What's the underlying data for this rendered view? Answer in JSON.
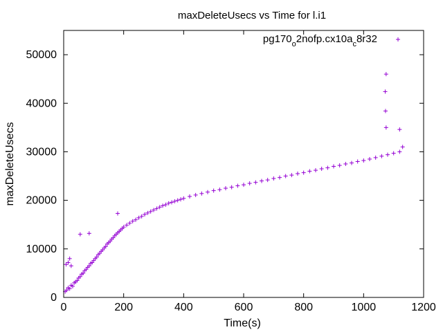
{
  "chart_data": {
    "type": "scatter",
    "title": "maxDeleteUsecs vs Time for l.i1",
    "xlabel": "Time(s)",
    "ylabel": "maxDeleteUsecs",
    "xlim": [
      0,
      1200
    ],
    "ylim": [
      0,
      55000
    ],
    "x_ticks": [
      0,
      200,
      400,
      600,
      800,
      1000,
      1200
    ],
    "y_ticks": [
      0,
      10000,
      20000,
      30000,
      40000,
      50000
    ],
    "grid": false,
    "legend_position": "top-right",
    "series": [
      {
        "name_parts": [
          {
            "text": "pg170",
            "sub": false
          },
          {
            "text": "o",
            "sub": true
          },
          {
            "text": "2nofp.cx10a",
            "sub": false
          },
          {
            "text": "c",
            "sub": true
          },
          {
            "text": "8r32",
            "sub": false
          }
        ],
        "color": "#9400d3",
        "marker": "+",
        "x_range": [
          2,
          1135
        ],
        "description_of_shape": "rising band",
        "points": [
          [
            5,
            1200
          ],
          [
            10,
            1500
          ],
          [
            15,
            2000
          ],
          [
            20,
            1800
          ],
          [
            25,
            2500
          ],
          [
            30,
            2300
          ],
          [
            35,
            3000
          ],
          [
            40,
            3200
          ],
          [
            45,
            3500
          ],
          [
            50,
            4000
          ],
          [
            55,
            4300
          ],
          [
            60,
            4800
          ],
          [
            65,
            5000
          ],
          [
            70,
            5500
          ],
          [
            75,
            5800
          ],
          [
            80,
            6200
          ],
          [
            85,
            6500
          ],
          [
            90,
            7000
          ],
          [
            95,
            7200
          ],
          [
            100,
            7600
          ],
          [
            105,
            8000
          ],
          [
            110,
            8300
          ],
          [
            115,
            8800
          ],
          [
            120,
            9100
          ],
          [
            125,
            9500
          ],
          [
            130,
            9800
          ],
          [
            135,
            10200
          ],
          [
            140,
            10500
          ],
          [
            145,
            11000
          ],
          [
            150,
            11300
          ],
          [
            155,
            11600
          ],
          [
            160,
            12000
          ],
          [
            165,
            12300
          ],
          [
            170,
            12700
          ],
          [
            175,
            13000
          ],
          [
            180,
            13300
          ],
          [
            185,
            13600
          ],
          [
            190,
            13900
          ],
          [
            195,
            14200
          ],
          [
            200,
            14500
          ],
          [
            210,
            14900
          ],
          [
            220,
            15300
          ],
          [
            230,
            15700
          ],
          [
            240,
            16000
          ],
          [
            250,
            16400
          ],
          [
            260,
            16700
          ],
          [
            270,
            17100
          ],
          [
            280,
            17400
          ],
          [
            290,
            17700
          ],
          [
            300,
            18000
          ],
          [
            310,
            18300
          ],
          [
            320,
            18600
          ],
          [
            330,
            18900
          ],
          [
            340,
            19100
          ],
          [
            350,
            19400
          ],
          [
            360,
            19600
          ],
          [
            370,
            19800
          ],
          [
            380,
            20000
          ],
          [
            390,
            20200
          ],
          [
            400,
            20400
          ],
          [
            420,
            20800
          ],
          [
            440,
            21100
          ],
          [
            460,
            21400
          ],
          [
            480,
            21700
          ],
          [
            500,
            22000
          ],
          [
            520,
            22200
          ],
          [
            540,
            22500
          ],
          [
            560,
            22700
          ],
          [
            580,
            23000
          ],
          [
            600,
            23200
          ],
          [
            620,
            23500
          ],
          [
            640,
            23700
          ],
          [
            660,
            24000
          ],
          [
            680,
            24200
          ],
          [
            700,
            24500
          ],
          [
            720,
            24700
          ],
          [
            740,
            25000
          ],
          [
            760,
            25200
          ],
          [
            780,
            25500
          ],
          [
            800,
            25700
          ],
          [
            820,
            26000
          ],
          [
            840,
            26200
          ],
          [
            860,
            26500
          ],
          [
            880,
            26700
          ],
          [
            900,
            27000
          ],
          [
            920,
            27200
          ],
          [
            940,
            27500
          ],
          [
            960,
            27700
          ],
          [
            980,
            28000
          ],
          [
            1000,
            28200
          ],
          [
            1020,
            28500
          ],
          [
            1040,
            28800
          ],
          [
            1060,
            29100
          ],
          [
            1080,
            29400
          ],
          [
            1100,
            29700
          ],
          [
            1120,
            30000
          ],
          [
            1130,
            31000
          ]
        ]
      }
    ],
    "outliers": [
      [
        8,
        6800
      ],
      [
        15,
        7200
      ],
      [
        20,
        8000
      ],
      [
        25,
        6500
      ],
      [
        55,
        13000
      ],
      [
        85,
        13200
      ],
      [
        180,
        17300
      ],
      [
        1075,
        46000
      ],
      [
        1072,
        42400
      ],
      [
        1073,
        38400
      ],
      [
        1075,
        35000
      ],
      [
        1120,
        34600
      ]
    ]
  }
}
